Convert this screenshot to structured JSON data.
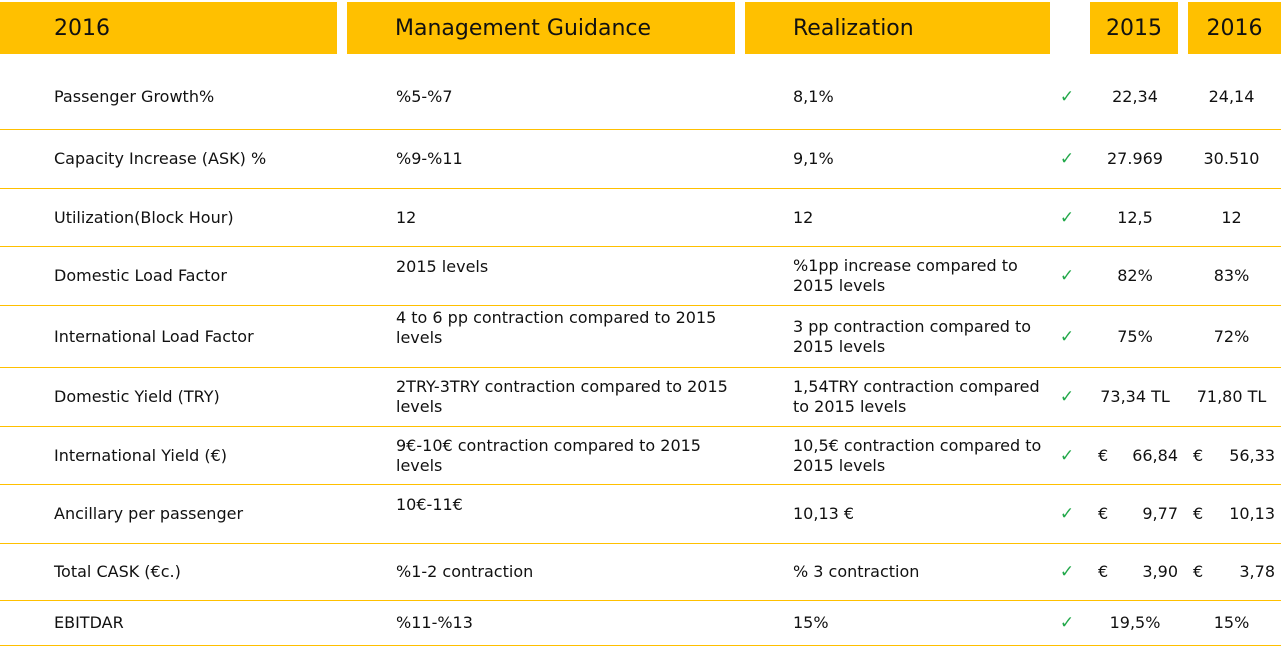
{
  "header": {
    "col_period": "2016",
    "col_guidance": "Management Guidance",
    "col_realization": "Realization",
    "col_2015": "2015",
    "col_2016": "2016"
  },
  "check_symbol": "✓",
  "currency_symbol": "€",
  "rows": [
    {
      "metric": "Passenger Growth%",
      "guidance": "%5-%7",
      "realization": "8,1%",
      "v2015": "22,34",
      "v2016": "24,14"
    },
    {
      "metric": "Capacity Increase (ASK) %",
      "guidance": "%9-%11",
      "realization": "9,1%",
      "v2015": "27.969",
      "v2016": "30.510"
    },
    {
      "metric": "Utilization(Block Hour)",
      "guidance": "12",
      "realization": "12",
      "v2015": "12,5",
      "v2016": "12"
    },
    {
      "metric": "Domestic Load Factor",
      "guidance": "2015 levels",
      "realization": "%1pp increase compared to 2015 levels",
      "v2015": "82%",
      "v2016": "83%"
    },
    {
      "metric": "International Load Factor",
      "guidance": "4 to 6 pp contraction compared to 2015 levels",
      "realization": "3 pp contraction compared to 2015 levels",
      "v2015": "75%",
      "v2016": "72%"
    },
    {
      "metric": "Domestic Yield (TRY)",
      "guidance": "2TRY-3TRY contraction compared to 2015 levels",
      "realization": "1,54TRY contraction compared to 2015 levels",
      "v2015": "73,34 TL",
      "v2016": "71,80 TL"
    },
    {
      "metric": "International Yield (€)",
      "guidance": "9€-10€ contraction compared to 2015 levels",
      "realization": "10,5€ contraction compared to 2015 levels",
      "v2015": "66,84",
      "v2016": "56,33"
    },
    {
      "metric": "Ancillary per passenger",
      "guidance": "10€-11€",
      "realization": "10,13 €",
      "v2015": "9,77",
      "v2016": "10,13"
    },
    {
      "metric": "Total CASK (€c.)",
      "guidance": "%1-2 contraction",
      "realization": "% 3 contraction",
      "v2015": "3,90",
      "v2016": "3,78"
    },
    {
      "metric": "EBITDAR",
      "guidance": "%11-%13",
      "realization": "15%",
      "v2015": "19,5%",
      "v2016": "15%"
    }
  ],
  "colors": {
    "header_bg": "#ffc000",
    "rule": "#ffc000",
    "check": "#22a84a"
  }
}
